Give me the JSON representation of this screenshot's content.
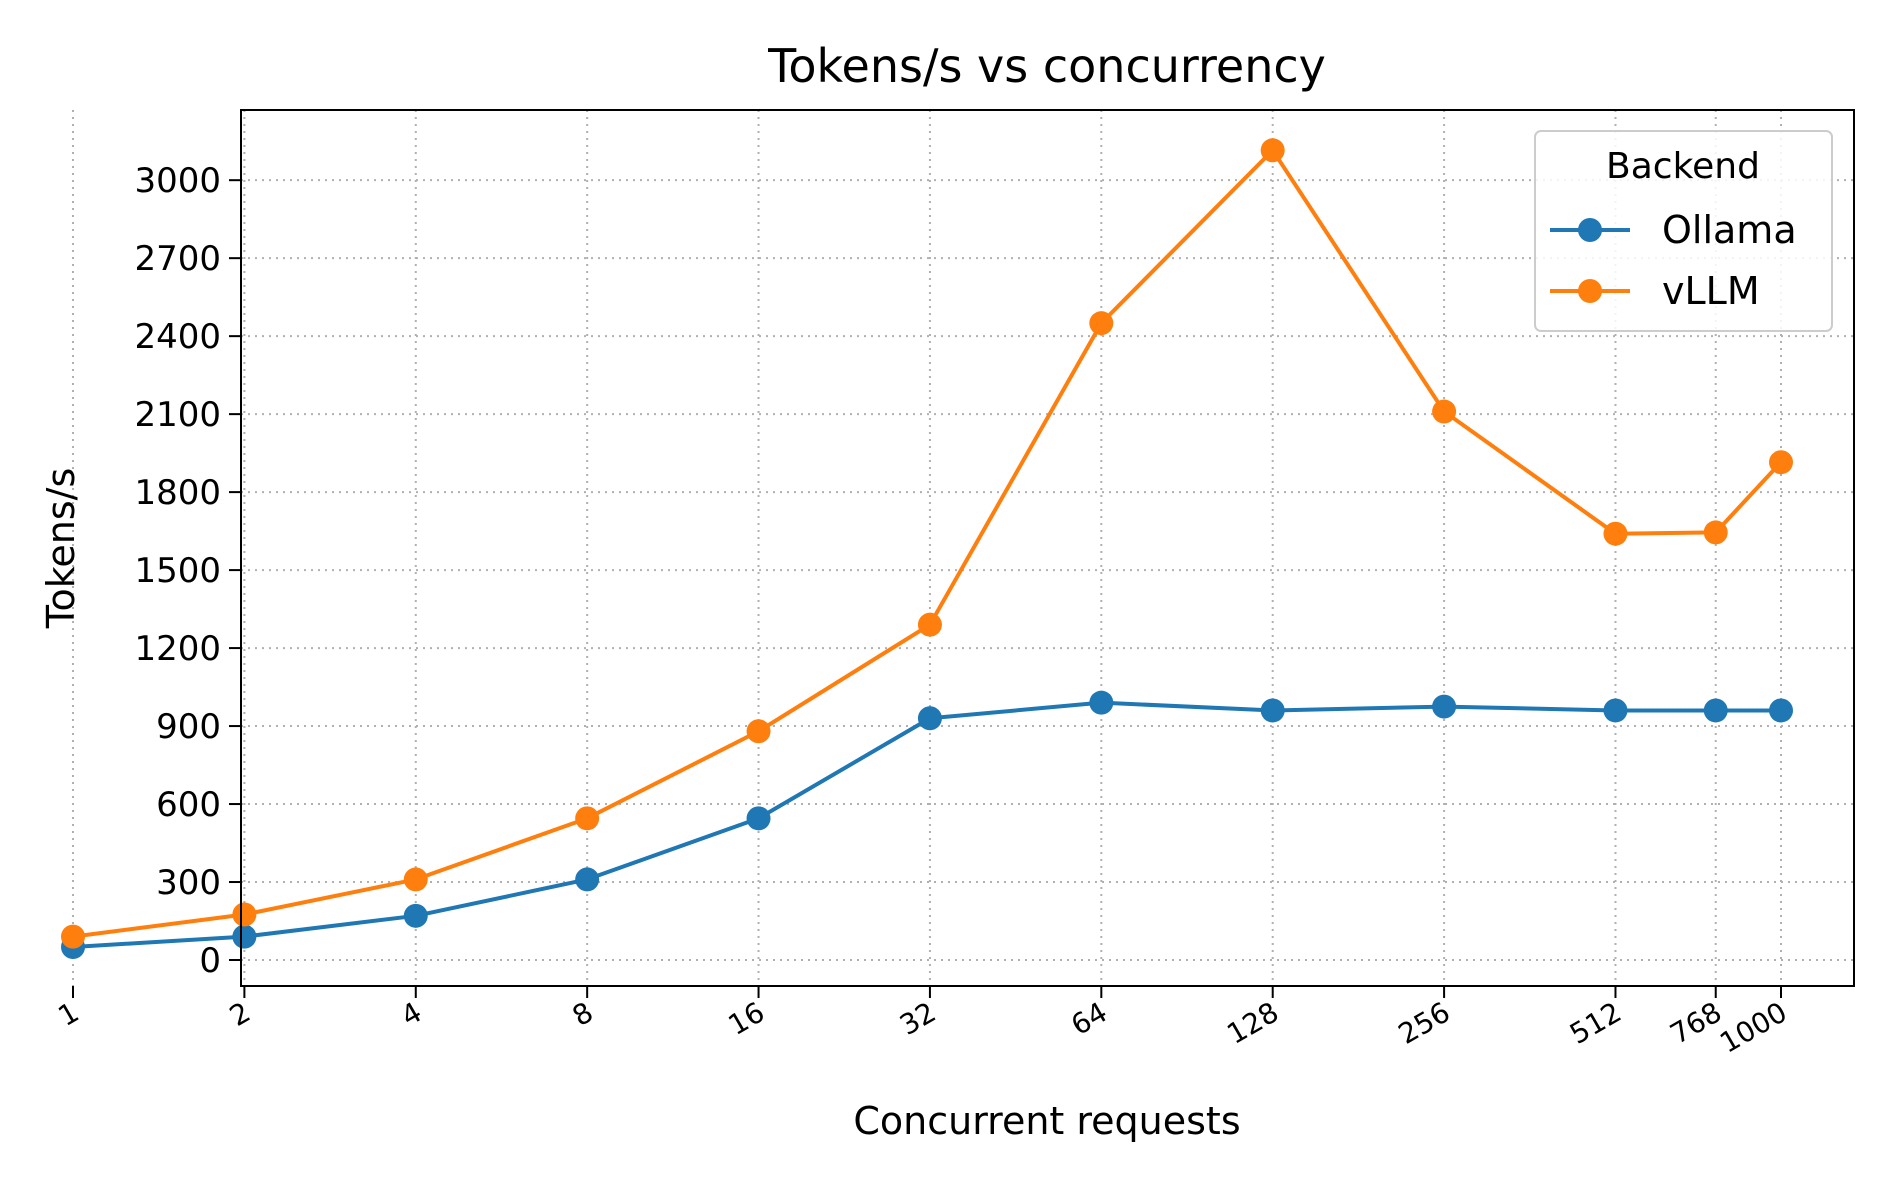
{
  "chart_data": {
    "type": "line",
    "title": "Tokens/s vs concurrency",
    "xlabel": "Concurrent requests",
    "ylabel": "Tokens/s",
    "x": [
      1,
      2,
      4,
      8,
      16,
      32,
      64,
      128,
      256,
      512,
      768,
      1000
    ],
    "x_scale": "log",
    "ylim": [
      -100,
      3270
    ],
    "yticks": [
      0,
      300,
      600,
      900,
      1200,
      1500,
      1800,
      2100,
      2400,
      2700,
      3000
    ],
    "grid": true,
    "legend": {
      "title": "Backend",
      "placement": "top-right"
    },
    "series": [
      {
        "name": "Ollama",
        "color": "#1f77b4",
        "values": [
          50,
          90,
          170,
          310,
          545,
          930,
          990,
          960,
          975,
          960,
          960,
          960
        ]
      },
      {
        "name": "vLLM",
        "color": "#ff7f0e",
        "values": [
          90,
          175,
          310,
          545,
          880,
          1290,
          2450,
          3115,
          2110,
          1640,
          1645,
          1915
        ]
      }
    ]
  }
}
